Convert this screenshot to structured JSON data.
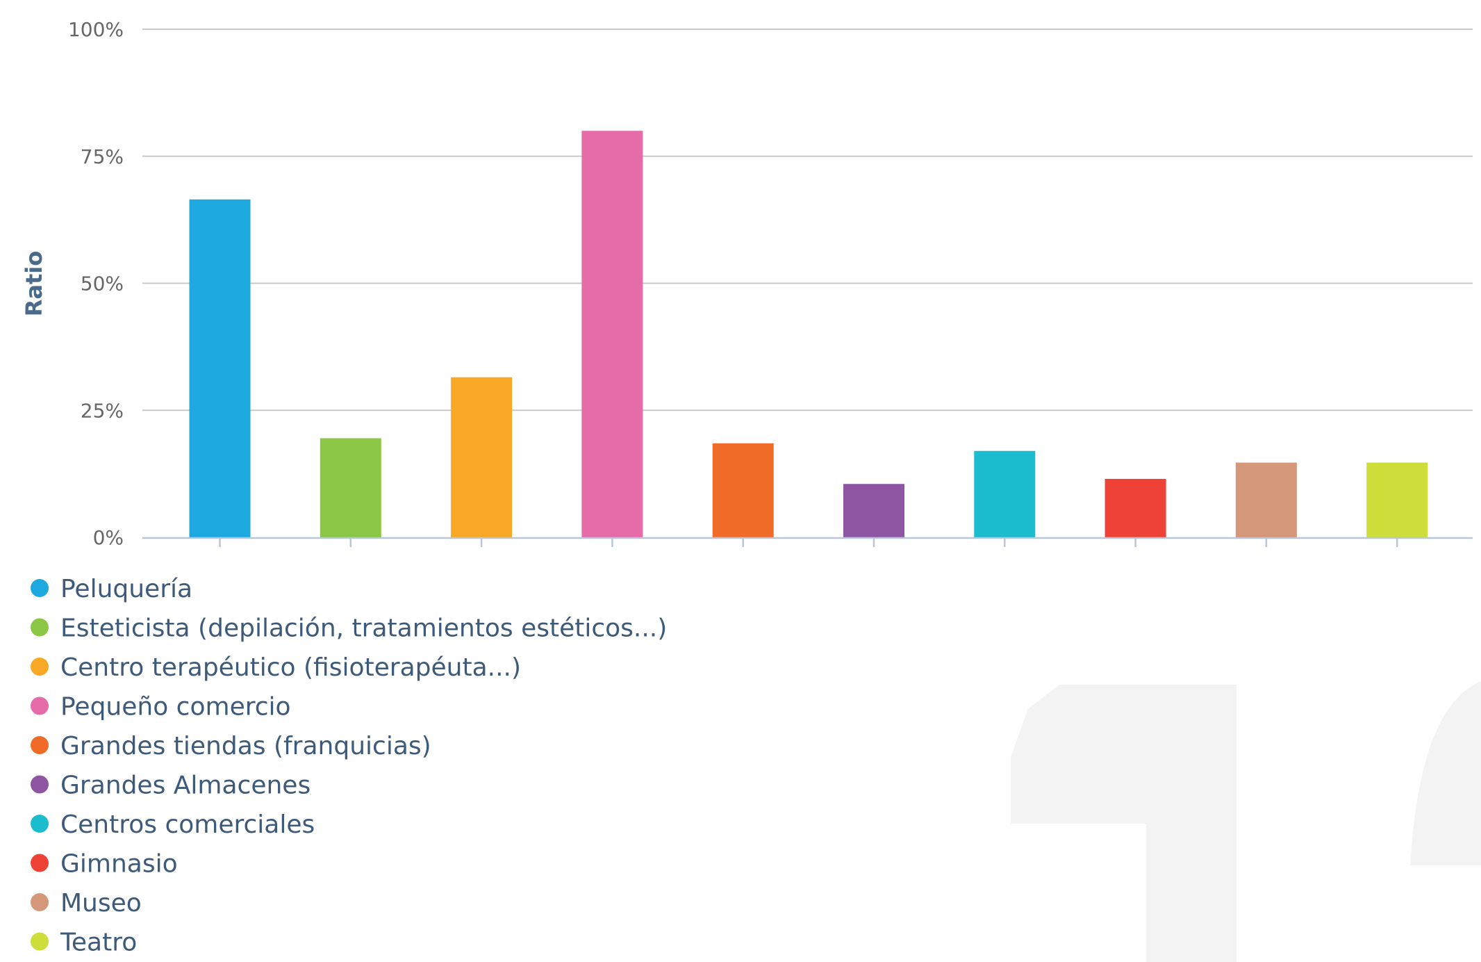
{
  "chart_data": {
    "type": "bar",
    "ylabel": "Ratio",
    "ylim": [
      0,
      100
    ],
    "yticks": [
      "0%",
      "25%",
      "50%",
      "75%",
      "100%"
    ],
    "grid": true,
    "legend_position": "bottom-left",
    "categories": [
      "Peluquería",
      "Esteticista (depilación, tratamientos estéticos...)",
      "Centro terapéutico (fisioterapéuta...)",
      "Pequeño comercio",
      "Grandes tiendas (franquicias)",
      "Grandes Almacenes",
      "Centros comerciales",
      "Gimnasio",
      "Museo",
      "Teatro"
    ],
    "values": [
      66.5,
      19.5,
      31.5,
      80,
      18.5,
      10.5,
      17,
      11.5,
      14.7,
      14.7
    ],
    "colors": [
      "#1ea8e0",
      "#8bc646",
      "#f9a825",
      "#e56ca8",
      "#f06a28",
      "#8e56a2",
      "#1bbccd",
      "#ef4236",
      "#d4977a",
      "#cddd3a"
    ]
  }
}
